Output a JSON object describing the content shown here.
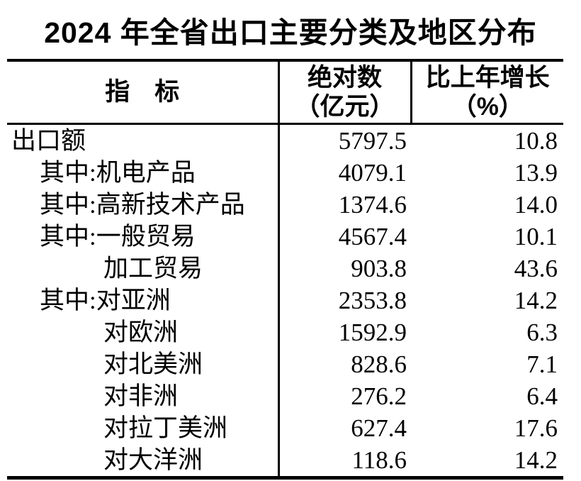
{
  "title": "2024 年全省出口主要分类及地区分布",
  "colors": {
    "background": "#ffffff",
    "text": "#000000",
    "rule": "#000000"
  },
  "table": {
    "headers": {
      "indicator": "指　标",
      "absolute_line1": "绝对数",
      "absolute_line2": "（亿元）",
      "growth_line1": "比上年增长",
      "growth_line2": "（%）"
    },
    "rows": [
      {
        "label": "出口额",
        "indent": 0,
        "absolute": "5797.5",
        "growth": "10.8"
      },
      {
        "label": "其中:机电产品",
        "indent": 1,
        "absolute": "4079.1",
        "growth": "13.9"
      },
      {
        "label": "其中:高新技术产品",
        "indent": 1,
        "absolute": "1374.6",
        "growth": "14.0"
      },
      {
        "label": "其中:一般贸易",
        "indent": 1,
        "absolute": "4567.4",
        "growth": "10.1"
      },
      {
        "label": "加工贸易",
        "indent": 2,
        "absolute": "903.8",
        "growth": "43.6"
      },
      {
        "label": "其中:对亚洲",
        "indent": 1,
        "absolute": "2353.8",
        "growth": "14.2"
      },
      {
        "label": "对欧洲",
        "indent": 2,
        "absolute": "1592.9",
        "growth": "6.3"
      },
      {
        "label": "对北美洲",
        "indent": 2,
        "absolute": "828.6",
        "growth": "7.1"
      },
      {
        "label": "对非洲",
        "indent": 2,
        "absolute": "276.2",
        "growth": "6.4"
      },
      {
        "label": "对拉丁美洲",
        "indent": 2,
        "absolute": "627.4",
        "growth": "17.6"
      },
      {
        "label": "对大洋洲",
        "indent": 2,
        "absolute": "118.6",
        "growth": "14.2"
      }
    ]
  },
  "chart_data": {
    "type": "table",
    "title": "2024 年全省出口主要分类及地区分布",
    "columns": [
      "指标",
      "绝对数（亿元）",
      "比上年增长（%）"
    ],
    "rows": [
      [
        "出口额",
        5797.5,
        10.8
      ],
      [
        "其中:机电产品",
        4079.1,
        13.9
      ],
      [
        "其中:高新技术产品",
        1374.6,
        14.0
      ],
      [
        "其中:一般贸易",
        4567.4,
        10.1
      ],
      [
        "加工贸易",
        903.8,
        43.6
      ],
      [
        "其中:对亚洲",
        2353.8,
        14.2
      ],
      [
        "对欧洲",
        1592.9,
        6.3
      ],
      [
        "对北美洲",
        828.6,
        7.1
      ],
      [
        "对非洲",
        276.2,
        6.4
      ],
      [
        "对拉丁美洲",
        627.4,
        17.6
      ],
      [
        "对大洋洲",
        118.6,
        14.2
      ]
    ]
  }
}
